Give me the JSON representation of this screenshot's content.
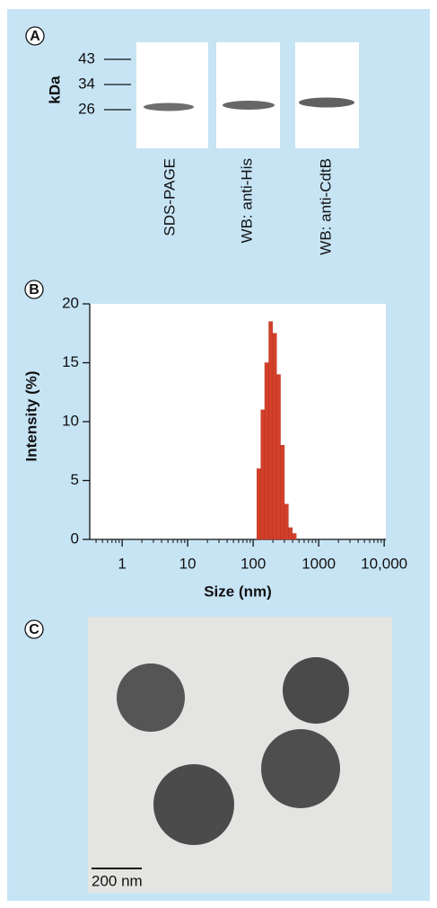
{
  "panel_a": {
    "letter": "A",
    "unit": "kDa",
    "markers": [
      "43",
      "34",
      "26"
    ],
    "lanes": [
      "SDS-PAGE",
      "WB: anti-His",
      "WB: anti-CdtB"
    ]
  },
  "panel_b": {
    "letter": "B"
  },
  "chart_data": {
    "type": "histogram",
    "x_label": "Size (nm)",
    "y_label": "Intensity (%)",
    "bins": [
      114,
      131,
      150,
      173,
      198,
      228,
      261,
      300,
      345,
      396,
      455
    ],
    "values": [
      6,
      11,
      15,
      18.5,
      17.5,
      14,
      8,
      3,
      1,
      0.5
    ],
    "color": "#d2402a",
    "xscale": "log",
    "xlim": [
      0.32,
      10600
    ],
    "ylim": [
      0,
      20
    ],
    "xticks": [
      1,
      10,
      100,
      1000,
      {
        "value": 10000,
        "label": "10,000"
      }
    ],
    "xminorticks": [
      0.4,
      0.5,
      0.6,
      0.7,
      0.8,
      0.9,
      2,
      3,
      4,
      5,
      6,
      7,
      8,
      9,
      20,
      30,
      40,
      50,
      60,
      70,
      80,
      90,
      200,
      300,
      400,
      500,
      600,
      700,
      800,
      900,
      2000,
      3000,
      4000,
      5000,
      6000,
      7000,
      8000,
      9000
    ],
    "yticks": [
      0,
      5,
      10,
      15,
      20
    ]
  },
  "panel_c": {
    "letter": "C",
    "scale_bar": "200 nm"
  }
}
